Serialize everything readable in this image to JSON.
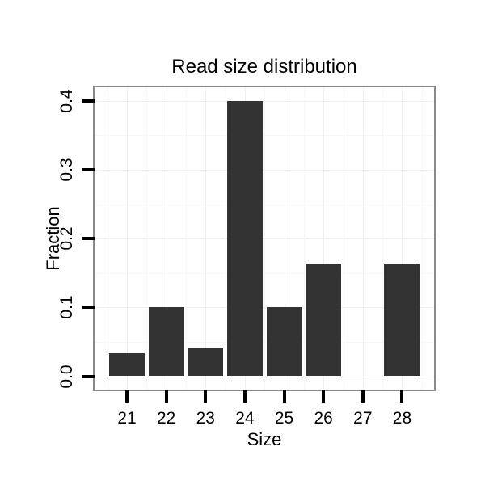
{
  "chart_data": {
    "type": "bar",
    "title": "Read size distribution",
    "xlabel": "Size",
    "ylabel": "Fraction",
    "categories": [
      "21",
      "22",
      "23",
      "24",
      "25",
      "26",
      "27",
      "28"
    ],
    "values": [
      0.033,
      0.1,
      0.04,
      0.4,
      0.1,
      0.163,
      0,
      0.163
    ],
    "y_ticks": [
      0.0,
      0.1,
      0.2,
      0.3,
      0.4
    ],
    "y_tick_labels": [
      "0.0",
      "0.1",
      "0.2",
      "0.3",
      "0.4"
    ],
    "ylim": [
      0,
      0.44
    ],
    "grid": "major and minor, very light gray on white panel",
    "legend": "none",
    "colors": {
      "bar_fill": "#333333",
      "panel_border": "#898989",
      "grid_major": "#efefef",
      "grid_minor": "#f7f7f7",
      "tick": "#000000",
      "text": "#000000",
      "background": "#ffffff"
    }
  }
}
